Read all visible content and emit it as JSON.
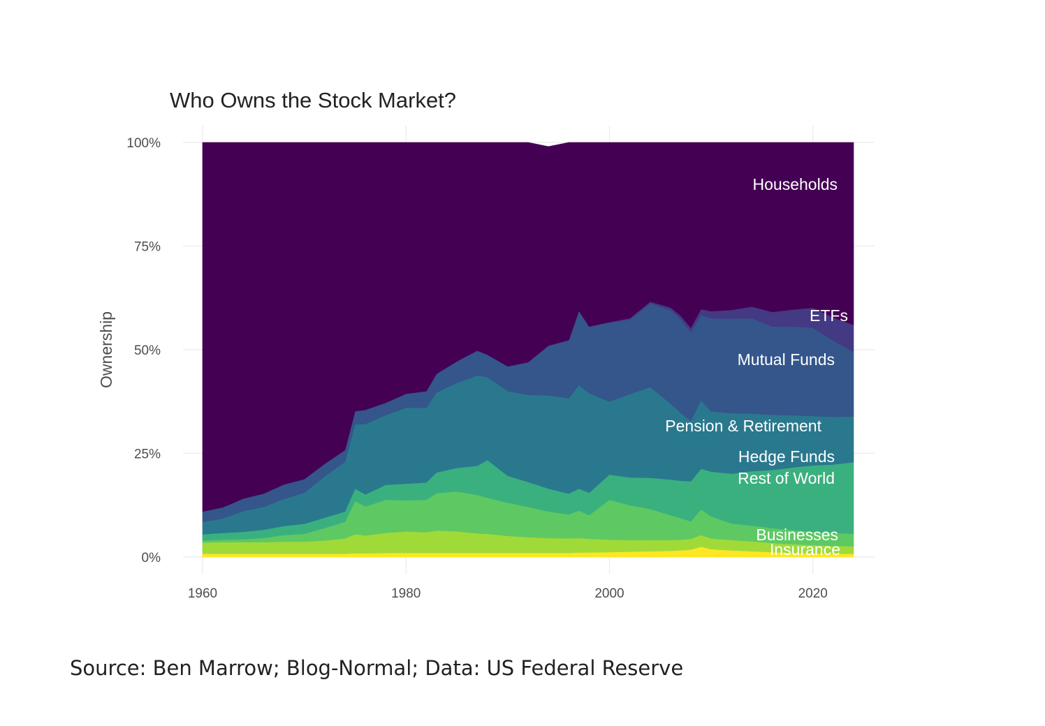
{
  "source_note": "Source: Ben Marrow; Blog-Normal; Data: US Federal Reserve",
  "chart_data": {
    "type": "area",
    "stacked": true,
    "title": "Who Owns the Stock Market?",
    "xlabel": "",
    "ylabel": "Ownership",
    "xlim": [
      1960,
      2024
    ],
    "ylim": [
      0,
      100
    ],
    "x_ticks": [
      1960,
      1980,
      2000,
      2020
    ],
    "x_tick_labels": [
      "1960",
      "1980",
      "2000",
      "2020"
    ],
    "y_ticks": [
      0,
      25,
      50,
      75,
      100
    ],
    "y_tick_labels": [
      "0%",
      "25%",
      "50%",
      "75%",
      "100%"
    ],
    "grid": true,
    "legend": "direct labels on areas",
    "x": [
      1960,
      1962,
      1964,
      1966,
      1968,
      1970,
      1972,
      1974,
      1975,
      1976,
      1978,
      1980,
      1982,
      1983,
      1985,
      1987,
      1988,
      1990,
      1992,
      1994,
      1996,
      1997,
      1998,
      2000,
      2002,
      2004,
      2006,
      2007,
      2008,
      2009,
      2010,
      2012,
      2014,
      2016,
      2018,
      2020,
      2022,
      2024
    ],
    "series": [
      {
        "name": "Insurance",
        "color": "#fde725",
        "values": [
          0.8,
          0.8,
          0.8,
          0.8,
          0.8,
          0.8,
          0.8,
          0.8,
          0.9,
          0.9,
          1.0,
          1.0,
          1.0,
          1.0,
          1.0,
          1.0,
          1.0,
          1.0,
          1.0,
          1.0,
          1.0,
          1.1,
          1.1,
          1.2,
          1.3,
          1.4,
          1.5,
          1.6,
          1.8,
          2.5,
          1.9,
          1.6,
          1.4,
          1.2,
          1.0,
          0.9,
          0.8,
          0.8
        ]
      },
      {
        "name": "Businesses",
        "color": "#a0da39",
        "values": [
          2.7,
          2.8,
          2.8,
          2.8,
          2.9,
          2.9,
          3.2,
          3.7,
          4.6,
          4.3,
          4.8,
          5.2,
          5.0,
          5.4,
          5.2,
          4.7,
          4.6,
          4.1,
          3.8,
          3.6,
          3.5,
          3.5,
          3.3,
          3.0,
          2.8,
          2.7,
          2.6,
          2.6,
          2.6,
          2.8,
          2.6,
          2.5,
          2.4,
          2.2,
          2.1,
          2.0,
          1.9,
          1.8
        ]
      },
      {
        "name": "Hedge Funds",
        "color": "#5ec962",
        "values": [
          0.5,
          0.6,
          0.7,
          1.0,
          1.6,
          1.9,
          3.0,
          4.0,
          8.0,
          7.0,
          8.0,
          7.5,
          7.8,
          9.0,
          9.6,
          9.3,
          8.7,
          8.0,
          7.3,
          6.4,
          5.8,
          6.6,
          5.7,
          9.6,
          8.4,
          7.5,
          6.0,
          5.2,
          4.2,
          6.2,
          5.3,
          4.0,
          3.8,
          3.6,
          3.4,
          3.2,
          3.1,
          3.0
        ]
      },
      {
        "name": "Rest of World",
        "color": "#3bb07f",
        "values": [
          1.5,
          1.6,
          1.8,
          2.0,
          2.2,
          2.4,
          2.5,
          2.5,
          3.0,
          2.9,
          3.6,
          4.0,
          4.2,
          5.0,
          5.7,
          7.0,
          9.1,
          6.5,
          6.0,
          5.5,
          5.0,
          5.3,
          5.4,
          6.1,
          6.7,
          7.5,
          8.6,
          9.0,
          9.7,
          9.8,
          10.8,
          12.0,
          13.1,
          14.0,
          15.1,
          16.0,
          16.5,
          17.3
        ]
      },
      {
        "name": "Pension & Retirement",
        "color": "#2a788e",
        "values": [
          3.0,
          3.5,
          5.0,
          5.5,
          6.5,
          7.5,
          10.0,
          12.0,
          15.5,
          17.0,
          16.8,
          18.3,
          18.0,
          19.3,
          20.5,
          21.8,
          20.0,
          20.4,
          21.0,
          22.5,
          23.0,
          25.0,
          24.0,
          17.6,
          20.1,
          21.9,
          18.3,
          16.4,
          14.5,
          16.5,
          14.5,
          14.6,
          13.9,
          13.3,
          12.6,
          11.9,
          11.5,
          11.0
        ]
      },
      {
        "name": "Mutual Funds",
        "color": "#34568b",
        "values": [
          2.5,
          2.7,
          3.0,
          3.2,
          3.5,
          3.3,
          3.0,
          2.8,
          3.2,
          3.4,
          3.0,
          3.4,
          4.0,
          4.5,
          5.2,
          6.0,
          5.4,
          6.0,
          7.9,
          12.0,
          14.0,
          17.9,
          16.0,
          19.0,
          18.0,
          20.2,
          22.6,
          22.6,
          21.5,
          20.6,
          22.5,
          22.8,
          23.0,
          21.3,
          21.4,
          21.3,
          18.4,
          15.6
        ]
      },
      {
        "name": "ETFs",
        "color": "#443983",
        "values": [
          0,
          0,
          0,
          0,
          0,
          0,
          0,
          0,
          0,
          0,
          0,
          0,
          0,
          0,
          0,
          0,
          0,
          0,
          0,
          0,
          0,
          0,
          0.1,
          0.2,
          0.3,
          0.4,
          0.6,
          0.8,
          1.0,
          1.4,
          1.7,
          2.1,
          2.8,
          3.5,
          4.1,
          4.8,
          5.6,
          6.5
        ]
      },
      {
        "name": "Households",
        "color": "#440154",
        "values": [
          89.0,
          88.0,
          85.9,
          84.7,
          82.5,
          81.2,
          77.5,
          74.2,
          64.8,
          64.5,
          62.8,
          60.6,
          60.0,
          55.8,
          52.8,
          50.2,
          51.2,
          54.0,
          53.0,
          48.0,
          47.7,
          40.6,
          44.4,
          43.3,
          42.4,
          38.4,
          39.8,
          41.8,
          44.7,
          40.2,
          40.7,
          40.4,
          39.6,
          40.9,
          40.3,
          39.9,
          42.2,
          44.0
        ]
      }
    ]
  }
}
